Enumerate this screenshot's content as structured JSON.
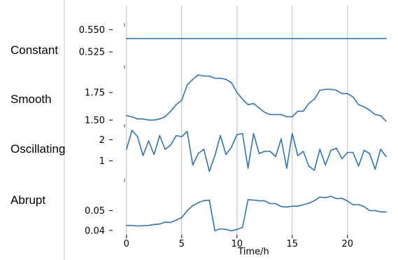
{
  "chart_data": {
    "type": "line",
    "xlabel": "Time/h",
    "xlim": [
      -1,
      24
    ],
    "x_ticks": [
      0,
      5,
      10,
      15,
      20
    ],
    "x_tick_labels": [
      "0",
      "5",
      "10",
      "15",
      "20"
    ],
    "grid": "vertical lines at x ticks",
    "line_color": "#2f75b5",
    "panels": [
      {
        "name": "Constant",
        "ylim": [
          0.5125,
          0.555
        ],
        "y_ticks": [
          0.525,
          0.55
        ],
        "y_tick_labels": [
          "0.525",
          "0.550"
        ],
        "x": [
          0,
          23.5
        ],
        "values": [
          0.54,
          0.54
        ]
      },
      {
        "name": "Smooth",
        "ylim": [
          1.47,
          1.98
        ],
        "y_ticks": [
          1.5,
          1.75
        ],
        "y_tick_labels": [
          "1.50",
          "1.75"
        ],
        "x": [
          0,
          0.5,
          1,
          1.5,
          2,
          2.5,
          3,
          3.5,
          4,
          4.5,
          5,
          5.5,
          6,
          6.5,
          7,
          7.5,
          8,
          8.5,
          9,
          9.5,
          10,
          10.5,
          11,
          11.5,
          12,
          12.5,
          13,
          13.5,
          14,
          14.5,
          15,
          15.5,
          16,
          16.5,
          17,
          17.5,
          18,
          18.5,
          19,
          19.5,
          20,
          20.5,
          21,
          21.5,
          22,
          22.5,
          23,
          23.5
        ],
        "values": [
          1.54,
          1.53,
          1.51,
          1.51,
          1.5,
          1.5,
          1.51,
          1.53,
          1.58,
          1.64,
          1.68,
          1.82,
          1.87,
          1.91,
          1.9,
          1.9,
          1.88,
          1.88,
          1.87,
          1.84,
          1.75,
          1.69,
          1.64,
          1.65,
          1.61,
          1.57,
          1.55,
          1.55,
          1.55,
          1.53,
          1.53,
          1.58,
          1.58,
          1.65,
          1.69,
          1.77,
          1.78,
          1.78,
          1.77,
          1.74,
          1.74,
          1.71,
          1.64,
          1.62,
          1.59,
          1.55,
          1.54,
          1.49
        ]
      },
      {
        "name": "Oscillating",
        "ylim": [
          0.15,
          2.65
        ],
        "y_ticks": [
          1,
          2
        ],
        "y_tick_labels": [
          "1",
          "2"
        ],
        "x": [
          0,
          0.5,
          1,
          1.5,
          2,
          2.5,
          3,
          3.5,
          4,
          4.5,
          5,
          5.5,
          6,
          6.5,
          7,
          7.5,
          8,
          8.5,
          9,
          9.5,
          10,
          10.5,
          11,
          11.5,
          12,
          12.5,
          13,
          13.5,
          14,
          14.5,
          15,
          15.5,
          16,
          16.5,
          17,
          17.5,
          18,
          18.5,
          19,
          19.5,
          20,
          20.5,
          21,
          21.5,
          22,
          22.5,
          23,
          23.5
        ],
        "values": [
          1.55,
          2.45,
          2.15,
          1.25,
          1.95,
          1.3,
          2.2,
          1.55,
          1.75,
          2.2,
          2.15,
          2.4,
          0.8,
          1.35,
          1.55,
          0.5,
          1.25,
          2.2,
          1.3,
          1.65,
          2.25,
          2.3,
          0.65,
          2.3,
          1.35,
          1.45,
          1.45,
          1.2,
          2.05,
          0.65,
          2.3,
          1.25,
          1.45,
          0.75,
          0.55,
          1.55,
          0.8,
          1.5,
          1.6,
          1.1,
          1.4,
          1.4,
          0.75,
          1.5,
          1.35,
          0.6,
          1.55,
          1.2
        ]
      },
      {
        "name": "Abrupt",
        "ylim": [
          0.0385,
          0.065
        ],
        "y_ticks": [
          0.04,
          0.05
        ],
        "y_tick_labels": [
          "0.04",
          "0.05"
        ],
        "x": [
          0,
          0.5,
          1,
          1.5,
          2,
          2.5,
          3,
          3.5,
          4,
          4.5,
          5,
          5.5,
          6,
          6.5,
          7,
          7.5,
          8,
          8.5,
          9,
          9.5,
          10,
          10.5,
          11,
          11.5,
          12,
          12.5,
          13,
          13.5,
          14,
          14.5,
          15,
          15.5,
          16,
          16.5,
          17,
          17.5,
          18,
          18.5,
          19,
          19.5,
          20,
          20.5,
          21,
          21.5,
          22,
          22.5,
          23,
          23.5
        ],
        "values": [
          0.0425,
          0.0425,
          0.0422,
          0.0424,
          0.0425,
          0.043,
          0.0432,
          0.0442,
          0.044,
          0.0452,
          0.0465,
          0.05,
          0.0525,
          0.054,
          0.055,
          0.0552,
          0.0398,
          0.0408,
          0.0405,
          0.0398,
          0.0405,
          0.0415,
          0.0555,
          0.0553,
          0.0549,
          0.0549,
          0.0535,
          0.0535,
          0.052,
          0.0518,
          0.0522,
          0.0522,
          0.053,
          0.0537,
          0.055,
          0.0568,
          0.0565,
          0.0572,
          0.056,
          0.0562,
          0.0548,
          0.053,
          0.053,
          0.052,
          0.05,
          0.05,
          0.0493,
          0.0493
        ]
      }
    ]
  }
}
